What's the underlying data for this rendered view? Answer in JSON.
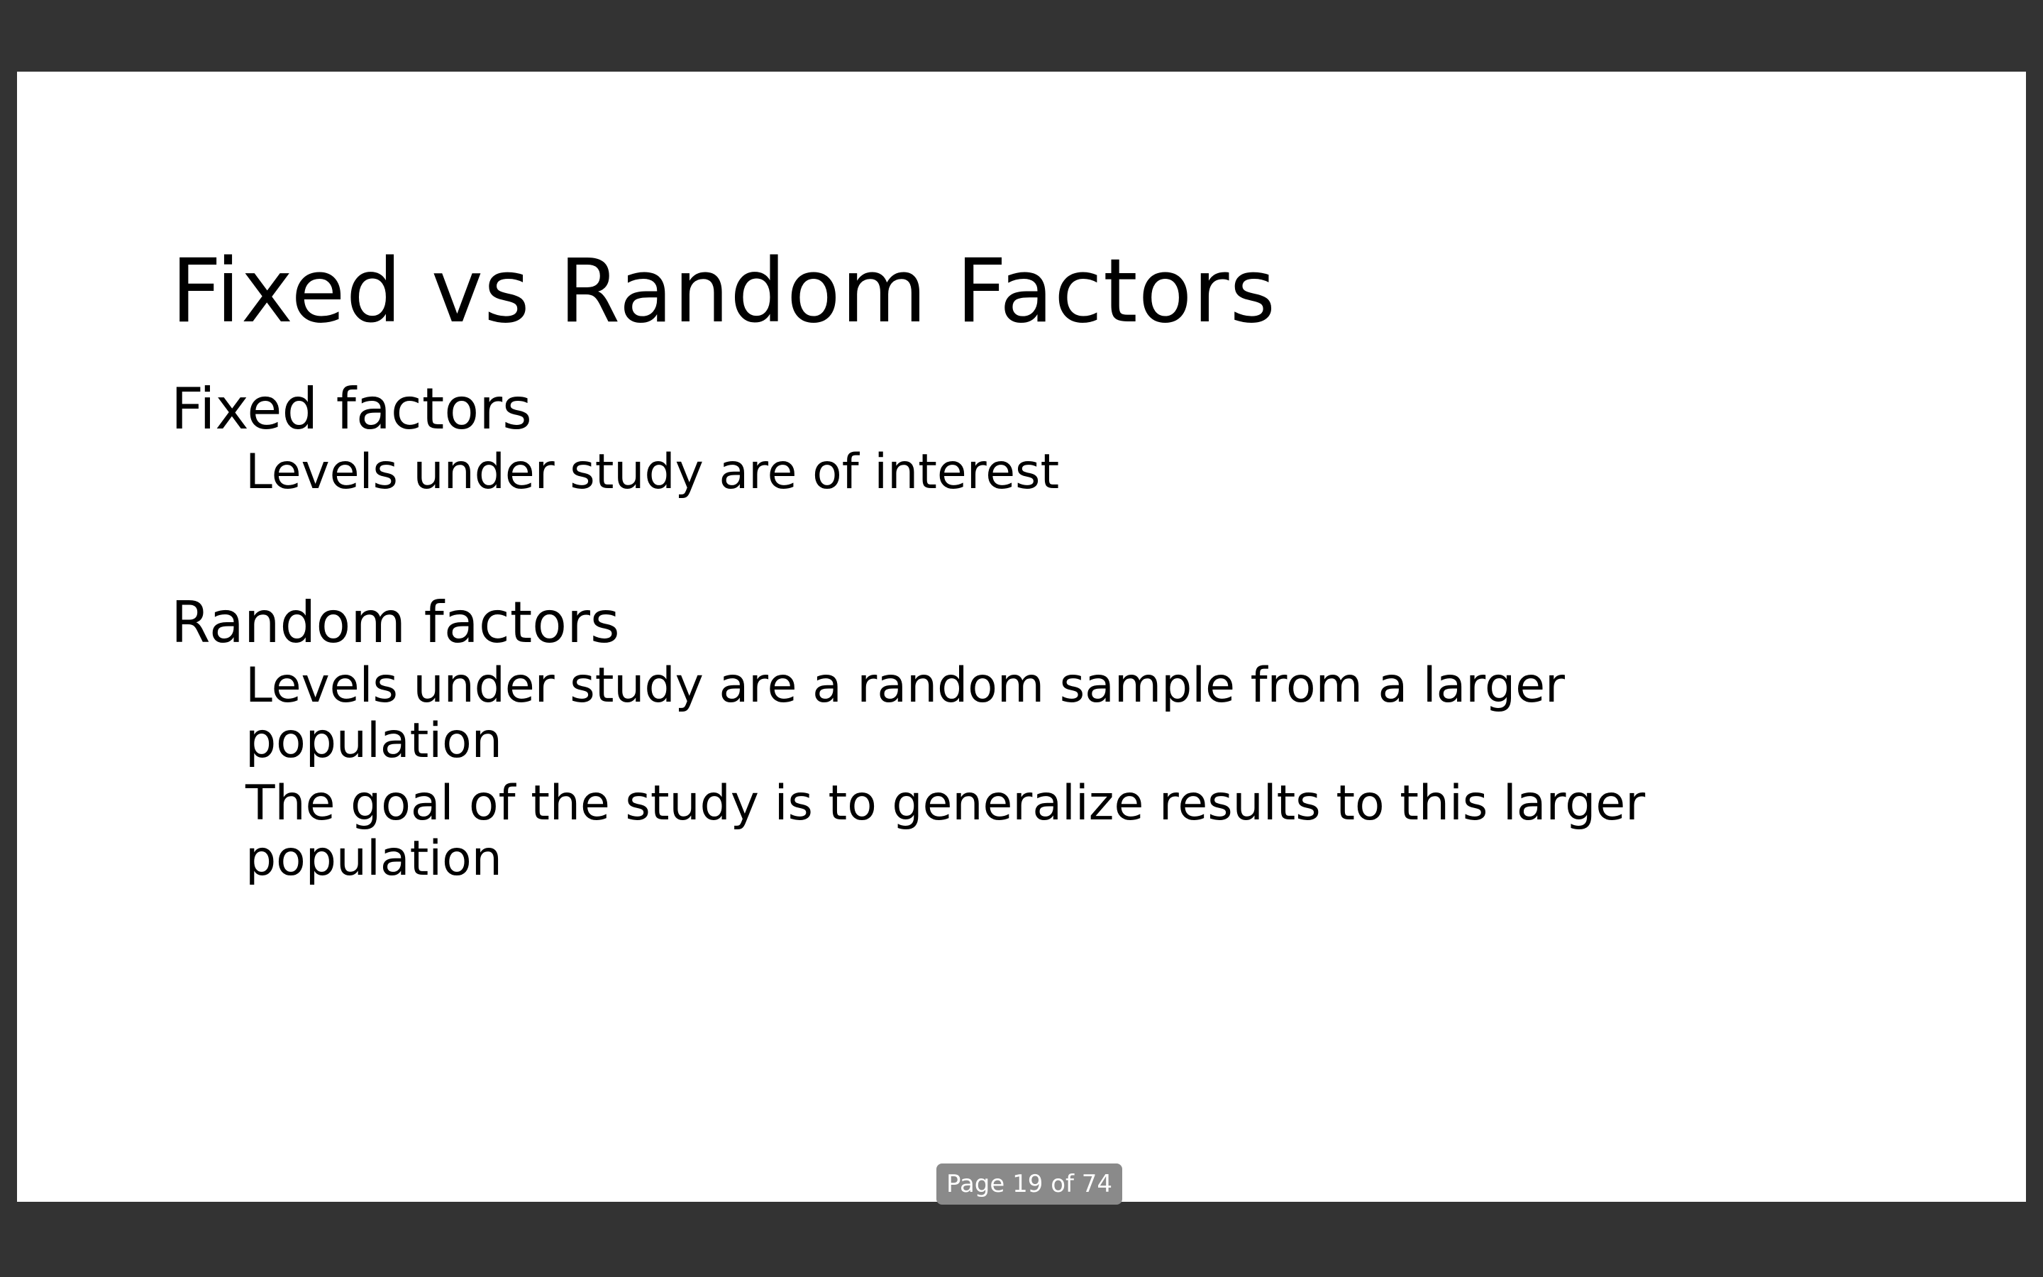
{
  "slide": {
    "title": "Fixed vs Random Factors",
    "sections": [
      {
        "heading": "Fixed factors",
        "bullets": [
          "Levels under study are of interest"
        ]
      },
      {
        "heading": "Random factors",
        "bullets": [
          "Levels under study are a random sample from a larger population",
          "The goal of the study is to generalize results to this larger population"
        ]
      }
    ]
  },
  "page_indicator": {
    "label": "Page 19 of 74",
    "current_page": 19,
    "total_pages": 74
  },
  "colors": {
    "viewer_background": "#333333",
    "slide_background": "#ffffff",
    "text": "#000000",
    "badge_background": "#8a8a8a",
    "badge_text": "#ffffff"
  }
}
